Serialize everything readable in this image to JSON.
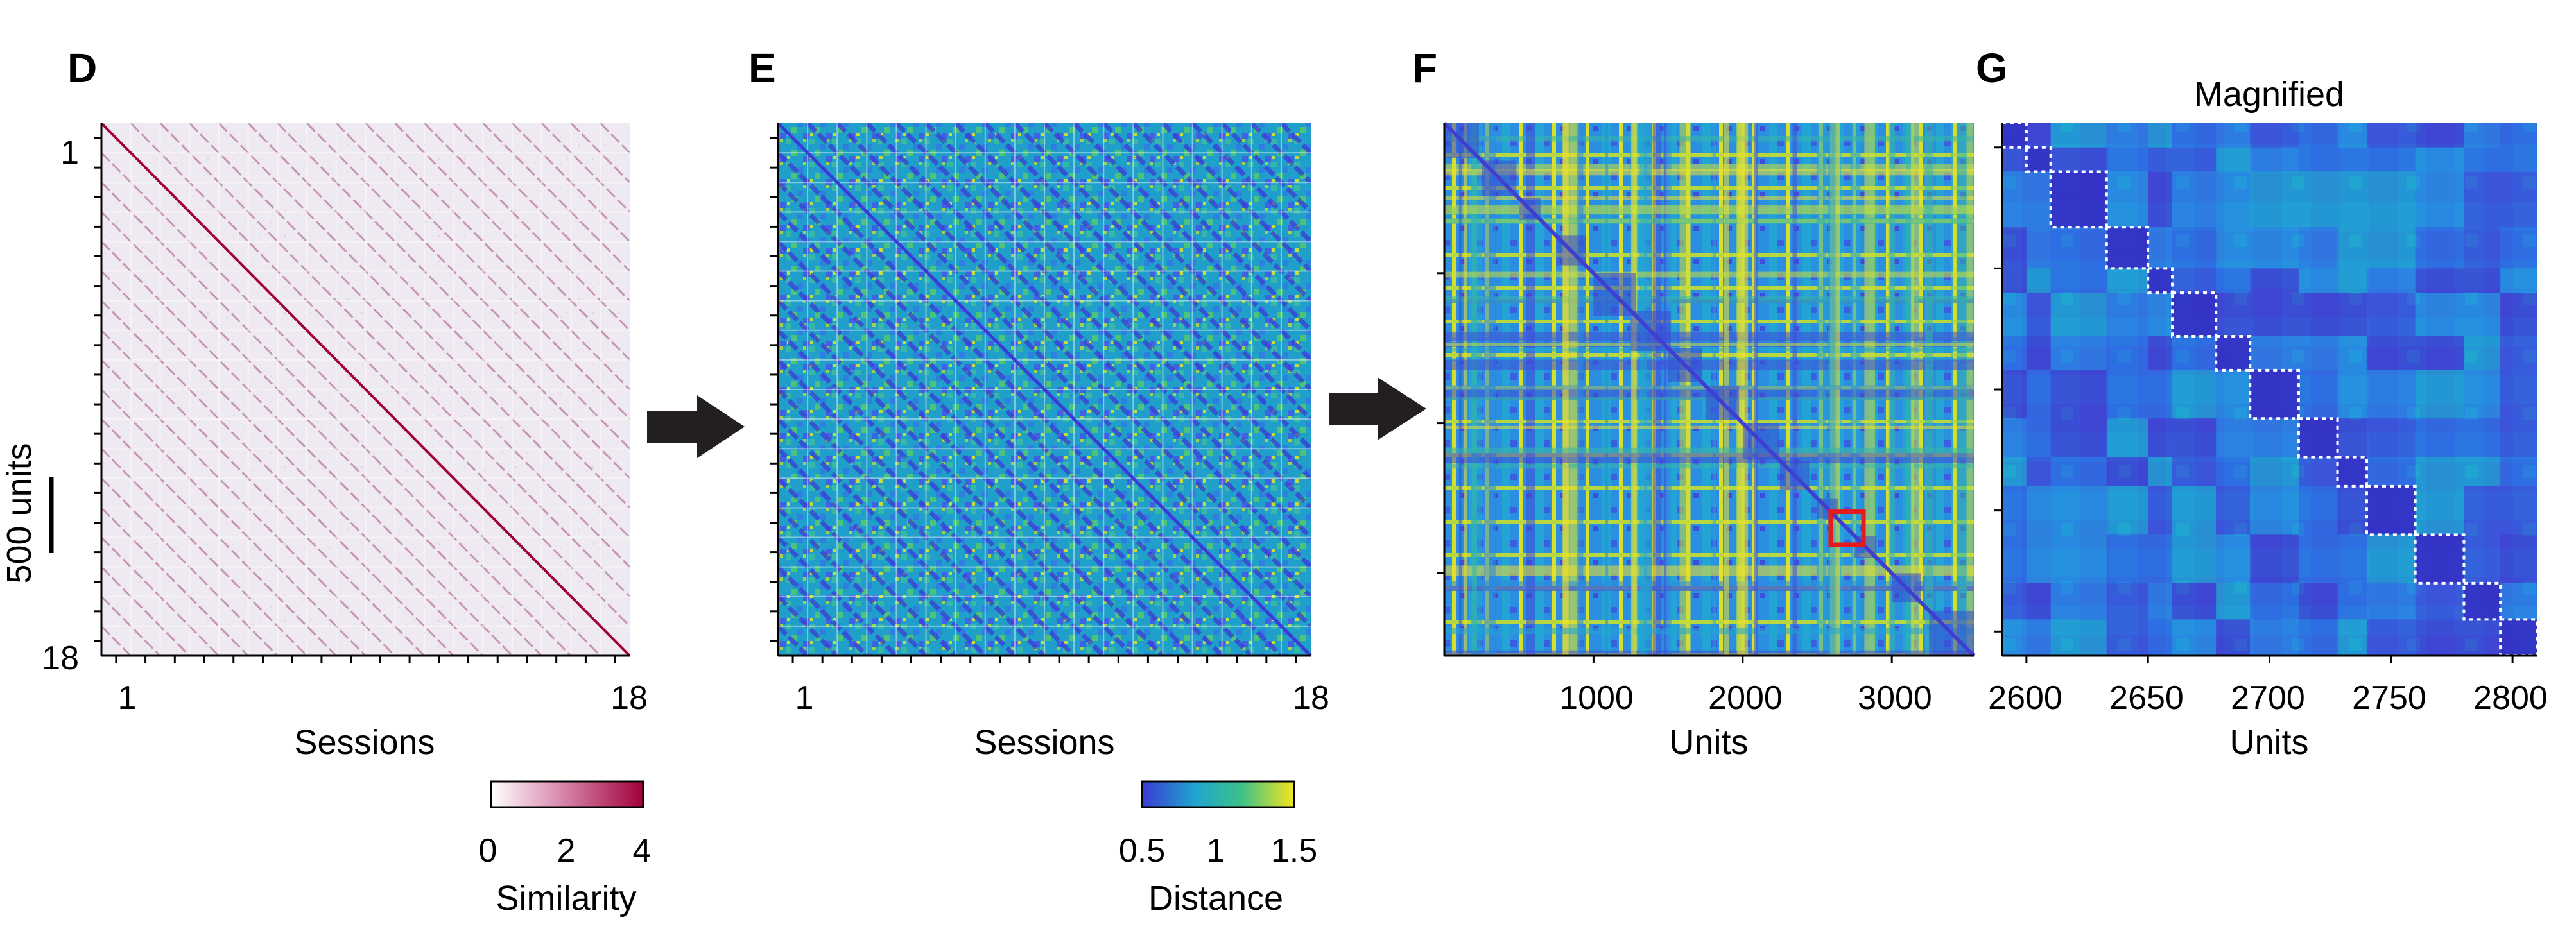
{
  "panels": {
    "D": {
      "letter": "D"
    },
    "E": {
      "letter": "E"
    },
    "F": {
      "letter": "F"
    },
    "G": {
      "letter": "G",
      "subtitle": "Magnified"
    }
  },
  "scale_bar_label": "500 units",
  "colors": {
    "similarity_low": "#f3eff5",
    "similarity_high": "#a1003b",
    "distance_low": "#3b3bd6",
    "distance_mid": "#1fa6cf",
    "distance_high": "#f5e51e",
    "arrow": "#231f20",
    "highlight_box": "#e41a1c",
    "cluster_outline": "#ffffff"
  },
  "chart_data": [
    {
      "panel": "D",
      "type": "heatmap",
      "title": "",
      "xlabel": "Sessions",
      "ylabel": "",
      "x_tick_labels": [
        "1",
        "18"
      ],
      "y_tick_labels": [
        "1",
        "18"
      ],
      "sessions": 18,
      "colorbar": {
        "label": "Similarity",
        "range": [
          0,
          4
        ],
        "ticks": [
          "0",
          "2",
          "4"
        ],
        "colormap": "white-to-crimson"
      }
    },
    {
      "panel": "E",
      "type": "heatmap",
      "title": "",
      "xlabel": "Sessions",
      "ylabel": "",
      "x_tick_labels": [
        "1",
        "18"
      ],
      "sessions": 18,
      "colorbar": {
        "label": "Distance",
        "range": [
          0.5,
          1.5
        ],
        "ticks": [
          "0.5",
          "1",
          "1.5"
        ],
        "colormap": "parula"
      }
    },
    {
      "panel": "F",
      "type": "heatmap",
      "title": "",
      "xlabel": "Units",
      "ylabel": "",
      "xlim": [
        0,
        3550
      ],
      "x_tick_labels": [
        "1000",
        "2000",
        "3000"
      ],
      "highlight_region": [
        2590,
        2810
      ]
    },
    {
      "panel": "G",
      "type": "heatmap",
      "title": "Magnified",
      "xlabel": "Units",
      "ylabel": "",
      "xlim": [
        2590,
        2810
      ],
      "x_tick_labels": [
        "2600",
        "2650",
        "2700",
        "2750",
        "2800"
      ],
      "cluster_boundaries": [
        2590,
        2600,
        2610,
        2633,
        2650,
        2660,
        2678,
        2692,
        2712,
        2728,
        2740,
        2760,
        2780,
        2795,
        2810
      ]
    }
  ]
}
